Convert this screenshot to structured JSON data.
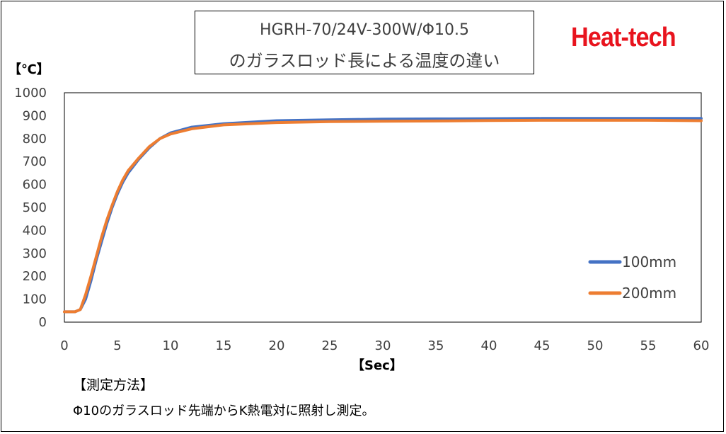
{
  "title": {
    "line1": "HGRH-70/24V-300W/Φ10.5",
    "line2": "のガラスロッド長による温度の違い"
  },
  "brand": "Heat-tech",
  "notes": {
    "heading": "【測定方法】",
    "text": "Φ10のガラスロッド先端からK熱電対に照射し測定。"
  },
  "colors": {
    "series_100mm": "#4472c4",
    "series_200mm": "#ed7d31",
    "brand": "#e8141e"
  },
  "chart_data": {
    "type": "line",
    "xlabel": "【Sec】",
    "ylabel": "【℃】",
    "xlim": [
      0,
      60
    ],
    "ylim": [
      0,
      1000
    ],
    "x_ticks": [
      "0",
      "5",
      "10",
      "15",
      "20",
      "25",
      "30",
      "35",
      "40",
      "45",
      "50",
      "55",
      "60"
    ],
    "y_ticks": [
      "0",
      "100",
      "200",
      "300",
      "400",
      "500",
      "600",
      "700",
      "800",
      "900",
      "1000"
    ],
    "grid": false,
    "legend_position": "right",
    "series": [
      {
        "name": "100mm",
        "color": "#4472c4",
        "points": [
          [
            0,
            45
          ],
          [
            1,
            45
          ],
          [
            1.5,
            55
          ],
          [
            2,
            100
          ],
          [
            2.5,
            180
          ],
          [
            3,
            270
          ],
          [
            3.5,
            350
          ],
          [
            4,
            430
          ],
          [
            4.5,
            500
          ],
          [
            5,
            560
          ],
          [
            5.5,
            610
          ],
          [
            6,
            650
          ],
          [
            7,
            710
          ],
          [
            8,
            760
          ],
          [
            9,
            800
          ],
          [
            10,
            825
          ],
          [
            12,
            850
          ],
          [
            15,
            865
          ],
          [
            20,
            878
          ],
          [
            25,
            882
          ],
          [
            30,
            885
          ],
          [
            35,
            886
          ],
          [
            40,
            887
          ],
          [
            45,
            888
          ],
          [
            50,
            888
          ],
          [
            55,
            888
          ],
          [
            60,
            888
          ]
        ]
      },
      {
        "name": "200mm",
        "color": "#ed7d31",
        "points": [
          [
            0,
            45
          ],
          [
            1,
            45
          ],
          [
            1.5,
            55
          ],
          [
            2,
            120
          ],
          [
            2.5,
            200
          ],
          [
            3,
            285
          ],
          [
            3.5,
            370
          ],
          [
            4,
            445
          ],
          [
            4.5,
            510
          ],
          [
            5,
            570
          ],
          [
            5.5,
            620
          ],
          [
            6,
            660
          ],
          [
            7,
            715
          ],
          [
            8,
            765
          ],
          [
            9,
            800
          ],
          [
            10,
            820
          ],
          [
            12,
            843
          ],
          [
            15,
            860
          ],
          [
            20,
            870
          ],
          [
            25,
            874
          ],
          [
            30,
            876
          ],
          [
            35,
            877
          ],
          [
            40,
            879
          ],
          [
            45,
            880
          ],
          [
            50,
            880
          ],
          [
            55,
            880
          ],
          [
            60,
            878
          ]
        ]
      }
    ]
  }
}
